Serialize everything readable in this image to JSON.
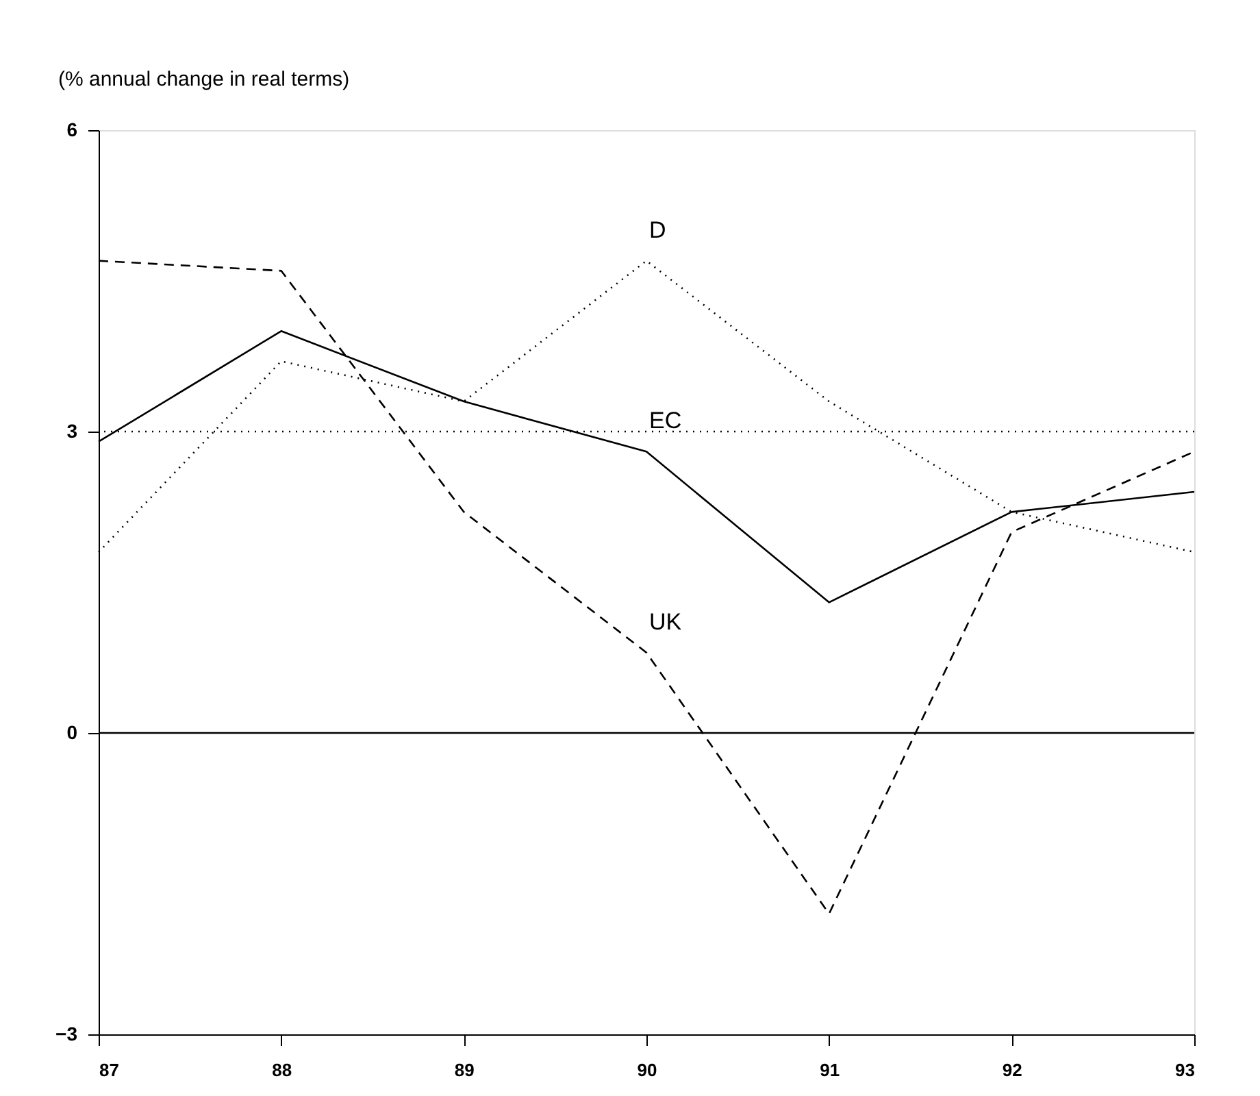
{
  "chart_data": {
    "type": "line",
    "ylabel": "(% annual change in real terms)",
    "x": [
      87,
      88,
      89,
      90,
      91,
      92,
      93
    ],
    "xlim": [
      87,
      93
    ],
    "xticks": [
      87,
      88,
      89,
      90,
      91,
      92,
      93
    ],
    "ylim": [
      -3,
      6
    ],
    "yticks": [
      -3,
      0,
      3,
      6
    ],
    "grid": false,
    "marker": "none",
    "series": [
      {
        "name": "EC",
        "color": "#000000",
        "line_style": "solid",
        "values": [
          2.9,
          4.0,
          3.3,
          2.8,
          1.3,
          2.2,
          2.4
        ]
      },
      {
        "name": "UK",
        "color": "#000000",
        "line_style": "dashed",
        "values": [
          4.7,
          4.6,
          2.2,
          0.8,
          -1.8,
          2.0,
          2.8
        ]
      },
      {
        "name": "D",
        "color": "#000000",
        "line_style": "dotted",
        "values": [
          1.8,
          3.7,
          3.3,
          4.7,
          3.3,
          2.2,
          1.8
        ]
      }
    ],
    "ref_lines": [
      {
        "axis": "y",
        "value": 0,
        "color": "#000000",
        "line_style": "solid"
      },
      {
        "axis": "y",
        "value": 3,
        "color": "#000000",
        "line_style": "dotted"
      }
    ]
  }
}
